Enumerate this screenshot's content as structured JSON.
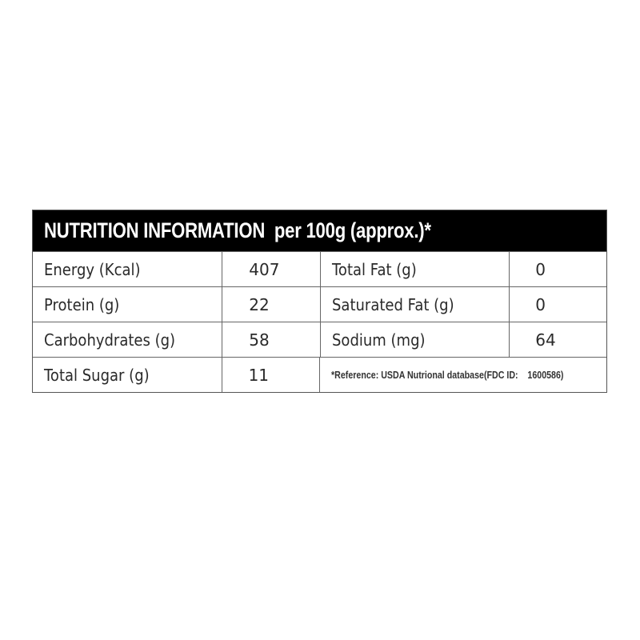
{
  "header": {
    "title": "NUTRITION INFORMATION  per 100g (approx.)*"
  },
  "rows": [
    {
      "left_label": "Energy (Kcal)",
      "left_value": "407",
      "right_label": "Total Fat (g)",
      "right_value": "0"
    },
    {
      "left_label": "Protein (g)",
      "left_value": "22",
      "right_label": "Saturated Fat (g)",
      "right_value": "0"
    },
    {
      "left_label": "Carbohydrates (g)",
      "left_value": "58",
      "right_label": "Sodium (mg)",
      "right_value": "64"
    },
    {
      "left_label": "Total Sugar (g)",
      "left_value": "11"
    }
  ],
  "reference": "*Reference: USDA Nutrional database(FDC ID:    1600586)"
}
